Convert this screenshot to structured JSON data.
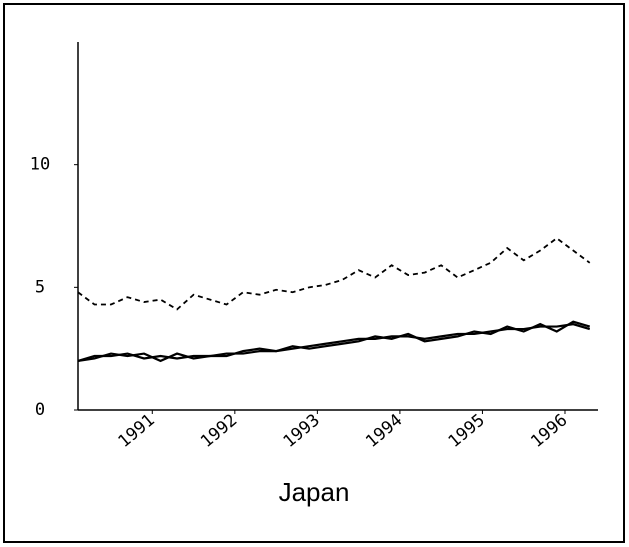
{
  "chart_data": {
    "type": "line",
    "title": "Japan",
    "x": [
      1990.1,
      1990.3,
      1990.5,
      1990.7,
      1990.9,
      1991.1,
      1991.3,
      1991.5,
      1991.7,
      1991.9,
      1992.1,
      1992.3,
      1992.5,
      1992.7,
      1992.9,
      1993.1,
      1993.3,
      1993.5,
      1993.7,
      1993.9,
      1994.1,
      1994.3,
      1994.5,
      1994.7,
      1994.9,
      1995.1,
      1995.3,
      1995.5,
      1995.7,
      1995.9,
      1996.1,
      1996.3
    ],
    "series": [
      {
        "color": "#000000",
        "dashed": true,
        "values": [
          4.8,
          4.3,
          4.3,
          4.6,
          4.4,
          4.5,
          4.1,
          4.7,
          4.5,
          4.3,
          4.8,
          4.7,
          4.9,
          4.8,
          5.0,
          5.1,
          5.3,
          5.7,
          5.4,
          5.9,
          5.5,
          5.6,
          5.9,
          5.4,
          5.7,
          6.0,
          6.6,
          6.1,
          6.5,
          7.0,
          6.5,
          6.0
        ]
      },
      {
        "color": "#000000",
        "dashed": false,
        "values": [
          2.0,
          2.2,
          2.2,
          2.3,
          2.1,
          2.2,
          2.1,
          2.2,
          2.2,
          2.3,
          2.3,
          2.4,
          2.4,
          2.5,
          2.6,
          2.7,
          2.8,
          2.9,
          2.9,
          3.0,
          3.0,
          2.9,
          3.0,
          3.1,
          3.1,
          3.2,
          3.3,
          3.3,
          3.4,
          3.4,
          3.5,
          3.3
        ]
      },
      {
        "color": "#000000",
        "dashed": false,
        "values": [
          2.0,
          2.1,
          2.3,
          2.2,
          2.3,
          2.0,
          2.3,
          2.1,
          2.2,
          2.2,
          2.4,
          2.5,
          2.4,
          2.6,
          2.5,
          2.6,
          2.7,
          2.8,
          3.0,
          2.9,
          3.1,
          2.8,
          2.9,
          3.0,
          3.2,
          3.1,
          3.4,
          3.2,
          3.5,
          3.2,
          3.6,
          3.4
        ]
      }
    ],
    "xlim": [
      1990.1,
      1996.4
    ],
    "xticks": [
      1991,
      1992,
      1993,
      1994,
      1995,
      1996
    ],
    "ylim": [
      0,
      15
    ],
    "yticks": [
      0,
      5,
      10
    ]
  }
}
